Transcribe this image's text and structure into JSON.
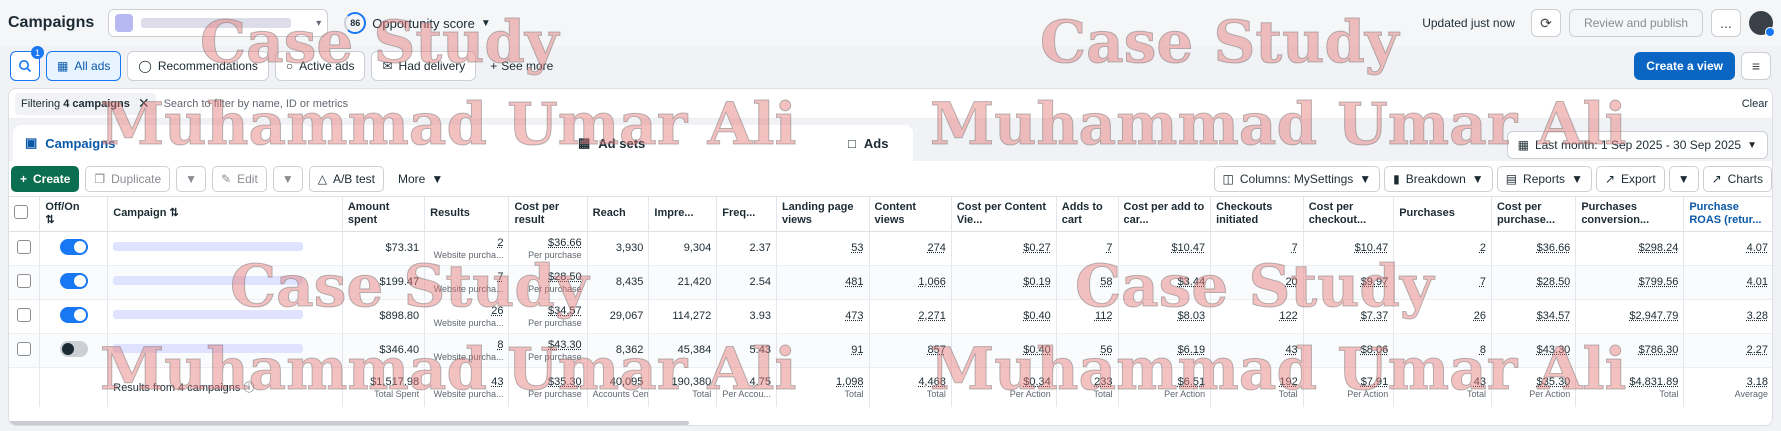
{
  "header": {
    "title": "Campaigns",
    "opportunity_score": "86",
    "opportunity_label": "Opportunity score",
    "updated": "Updated just now",
    "review_publish": "Review and publish",
    "more": "..."
  },
  "filters": {
    "search_badge": "1",
    "items": [
      "All ads",
      "Recommendations",
      "Active ads",
      "Had delivery"
    ],
    "see_more": "See more",
    "create_view": "Create a view"
  },
  "searchrow": {
    "chip_prefix": "Filtering",
    "chip_bold": "4 campaigns",
    "placeholder": "Search to filter by name, ID or metrics",
    "clear": "Clear"
  },
  "tabs": {
    "campaigns": "Campaigns",
    "adsets": "Ad sets",
    "ads": "Ads"
  },
  "date_range": "Last month: 1 Sep 2025 - 30 Sep 2025",
  "toolbar": {
    "create": "Create",
    "duplicate": "Duplicate",
    "edit": "Edit",
    "ab_test": "A/B test",
    "more": "More",
    "columns": "Columns: MySettings",
    "breakdown": "Breakdown",
    "reports": "Reports",
    "export": "Export",
    "charts": "Charts"
  },
  "table": {
    "headers": {
      "onoff": "Off/On",
      "campaign": "Campaign",
      "amount": "Amount spent",
      "results": "Results",
      "cpr": "Cost per result",
      "reach": "Reach",
      "impr": "Impre...",
      "freq": "Freq...",
      "lpv": "Landing page views",
      "cv": "Content views",
      "cpcv": "Cost per Content Vie...",
      "atc": "Adds to cart",
      "cpatc": "Cost per add to car...",
      "ci": "Checkouts initiated",
      "cpci": "Cost per checkout...",
      "purch": "Purchases",
      "cpp": "Cost per purchase...",
      "pcv": "Purchases conversion...",
      "roas": "Purchase ROAS (retur..."
    },
    "rows": [
      {
        "on": true,
        "amount": "$73.31",
        "results": "2",
        "results_sub": "Website purcha...",
        "cpr": "$36.66",
        "cpr_sub": "Per purchase",
        "reach": "3,930",
        "impr": "9,304",
        "freq": "2.37",
        "lpv": "53",
        "cv": "274",
        "cpcv": "$0.27",
        "atc": "7",
        "cpatc": "$10.47",
        "ci": "7",
        "cpci": "$10.47",
        "purch": "2",
        "cpp": "$36.66",
        "pcv": "$298.24",
        "roas": "4.07"
      },
      {
        "on": true,
        "amount": "$199.47",
        "results": "7",
        "results_sub": "Website purcha...",
        "cpr": "$28.50",
        "cpr_sub": "Per purchase",
        "reach": "8,435",
        "impr": "21,420",
        "freq": "2.54",
        "lpv": "481",
        "cv": "1,066",
        "cpcv": "$0.19",
        "atc": "58",
        "cpatc": "$3.44",
        "ci": "20",
        "cpci": "$9.97",
        "purch": "7",
        "cpp": "$28.50",
        "pcv": "$799.56",
        "roas": "4.01"
      },
      {
        "on": true,
        "amount": "$898.80",
        "results": "26",
        "results_sub": "Website purcha...",
        "cpr": "$34.57",
        "cpr_sub": "Per purchase",
        "reach": "29,067",
        "impr": "114,272",
        "freq": "3.93",
        "lpv": "473",
        "cv": "2,271",
        "cpcv": "$0.40",
        "atc": "112",
        "cpatc": "$8.03",
        "ci": "122",
        "cpci": "$7.37",
        "purch": "26",
        "cpp": "$34.57",
        "pcv": "$2,947.79",
        "roas": "3.28"
      },
      {
        "on": false,
        "amount": "$346.40",
        "results": "8",
        "results_sub": "Website purcha...",
        "cpr": "$43.30",
        "cpr_sub": "Per purchase",
        "reach": "8,362",
        "impr": "45,384",
        "freq": "5.43",
        "lpv": "91",
        "cv": "857",
        "cpcv": "$0.40",
        "atc": "56",
        "cpatc": "$6.19",
        "ci": "43",
        "cpci": "$8.06",
        "purch": "8",
        "cpp": "$43.30",
        "pcv": "$786.30",
        "roas": "2.27"
      }
    ],
    "total": {
      "label": "Results from 4 campaigns",
      "amount": "$1,517.98",
      "amount_sub": "Total Spent",
      "results": "43",
      "results_sub": "Website purcha...",
      "cpr": "$35.30",
      "cpr_sub": "Per purchase",
      "reach": "40,095",
      "reach_sub": "Accounts Cen...",
      "impr": "190,380",
      "impr_sub": "Total",
      "freq": "4.75",
      "freq_sub": "Per Accou...",
      "lpv": "1,098",
      "lpv_sub": "Total",
      "cv": "4,468",
      "cv_sub": "Total",
      "cpcv": "$0.34",
      "cpcv_sub": "Per Action",
      "atc": "233",
      "atc_sub": "Total",
      "cpatc": "$6.51",
      "cpatc_sub": "Per Action",
      "ci": "192",
      "ci_sub": "Total",
      "cpci": "$7.91",
      "cpci_sub": "Per Action",
      "purch": "43",
      "purch_sub": "Total",
      "cpp": "$35.30",
      "cpp_sub": "Per Action",
      "pcv": "$4,831.89",
      "pcv_sub": "Total",
      "roas": "3.18",
      "roas_sub": "Average"
    }
  },
  "watermark": {
    "line1": "Case Study",
    "line2": "Muhammad Umar Ali"
  }
}
